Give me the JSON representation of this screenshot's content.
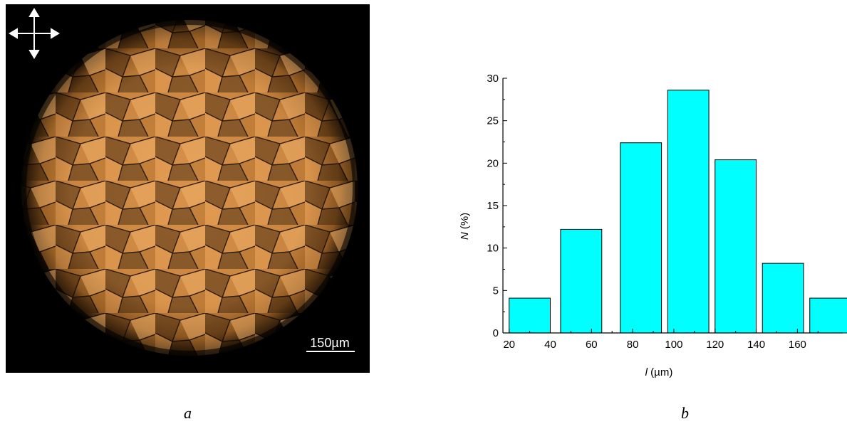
{
  "micrograph": {
    "scale_bar_label": "150µm",
    "polarizer_icon": "crossed-polarizers-icon",
    "texture_color": "#e8a55a"
  },
  "panels": {
    "a_label": "a",
    "b_label": "b"
  },
  "chart_data": {
    "type": "bar",
    "bins": [
      {
        "from": 20,
        "to": 40,
        "value": 4.1
      },
      {
        "from": 45,
        "to": 65,
        "value": 12.2
      },
      {
        "from": 74,
        "to": 94,
        "value": 22.4
      },
      {
        "from": 97,
        "to": 117,
        "value": 28.6
      },
      {
        "from": 120,
        "to": 140,
        "value": 20.4
      },
      {
        "from": 143,
        "to": 163,
        "value": 8.2
      },
      {
        "from": 166,
        "to": 186,
        "value": 4.1
      }
    ],
    "xticks": [
      20,
      40,
      60,
      80,
      100,
      120,
      140,
      160
    ],
    "yticks": [
      0,
      5,
      10,
      15,
      20,
      25,
      30
    ],
    "xlim": [
      17,
      182
    ],
    "ylim": [
      0,
      30
    ],
    "xlabel": "l (µm)",
    "xlabel_var": "l",
    "xlabel_unit": " (µm)",
    "ylabel": "N (%)",
    "ylabel_var": "N",
    "ylabel_unit": " (%)",
    "bar_color": "#00ffff",
    "grid": false
  }
}
